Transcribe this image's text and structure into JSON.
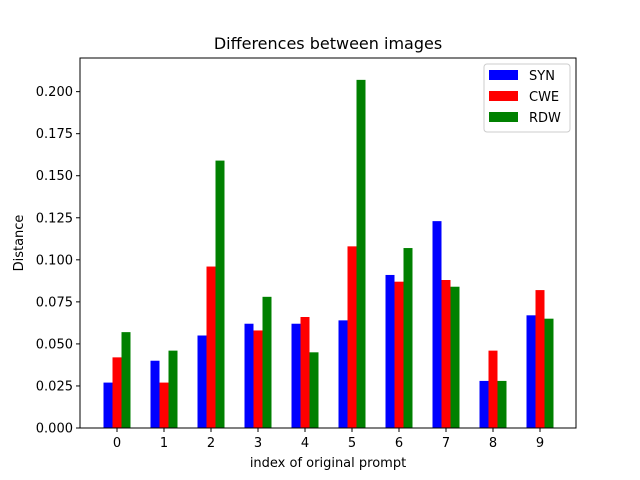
{
  "chart_data": {
    "type": "bar",
    "title": "Differences between images",
    "xlabel": "index of original prompt",
    "ylabel": "Distance",
    "categories": [
      "0",
      "1",
      "2",
      "3",
      "4",
      "5",
      "6",
      "7",
      "8",
      "9"
    ],
    "series": [
      {
        "name": "SYN",
        "color": "#0000ff",
        "values": [
          0.027,
          0.04,
          0.055,
          0.062,
          0.062,
          0.064,
          0.091,
          0.123,
          0.028,
          0.067
        ]
      },
      {
        "name": "CWE",
        "color": "#ff0000",
        "values": [
          0.042,
          0.027,
          0.096,
          0.058,
          0.066,
          0.108,
          0.087,
          0.088,
          0.046,
          0.082
        ]
      },
      {
        "name": "RDW",
        "color": "#008000",
        "values": [
          0.057,
          0.046,
          0.159,
          0.078,
          0.045,
          0.207,
          0.107,
          0.084,
          0.028,
          0.065
        ]
      }
    ],
    "ylim": [
      0,
      0.22
    ],
    "yticks": [
      "0.000",
      "0.025",
      "0.050",
      "0.075",
      "0.100",
      "0.125",
      "0.150",
      "0.175",
      "0.200"
    ],
    "grid": false,
    "legend_position": "top-right"
  }
}
